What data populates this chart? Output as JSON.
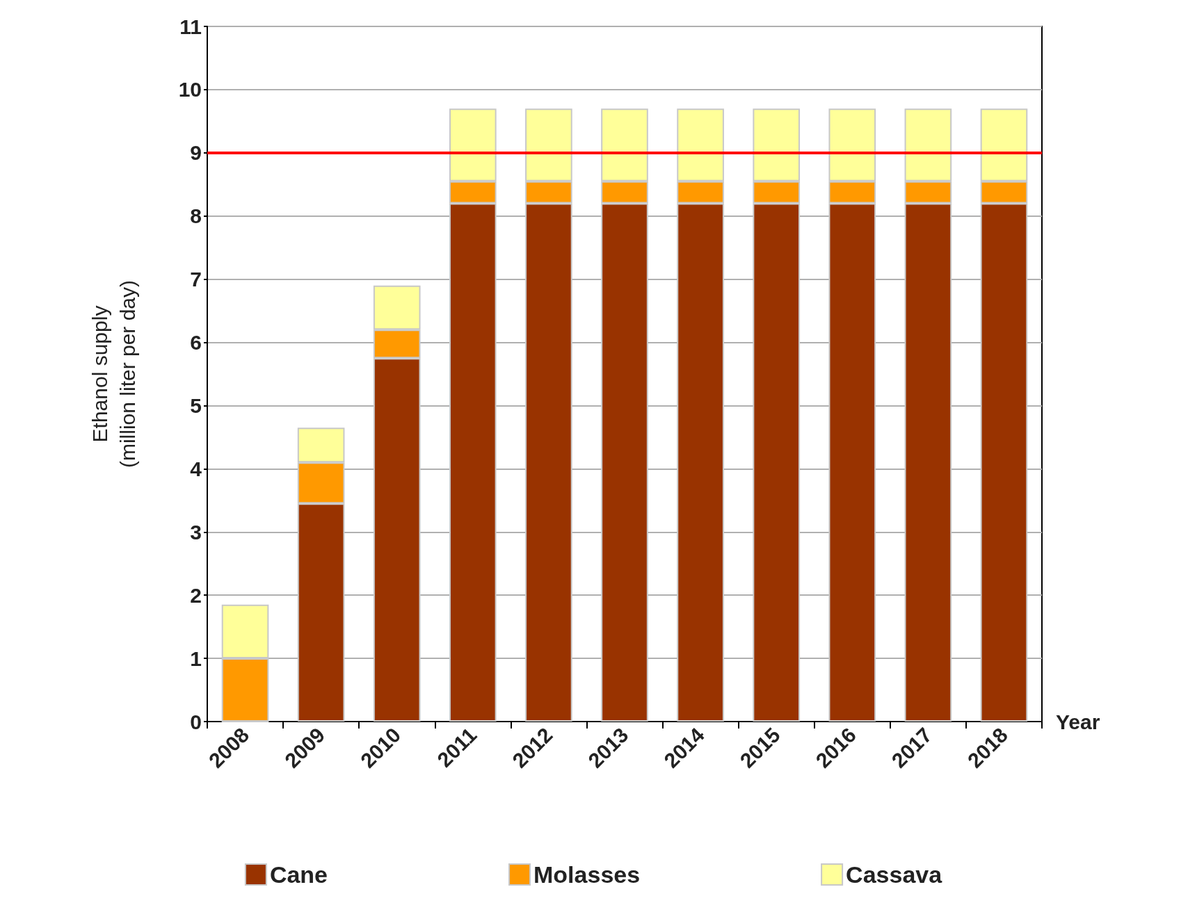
{
  "chart_data": {
    "type": "bar",
    "stacked": true,
    "xlabel": "Year",
    "ylabel": "Ethanol supply\n(million liter per day)",
    "categories": [
      "2008",
      "2009",
      "2010",
      "2011",
      "2012",
      "2013",
      "2014",
      "2015",
      "2016",
      "2017",
      "2018"
    ],
    "series": [
      {
        "name": "Cane",
        "color": "#993300",
        "values": [
          0,
          3.45,
          5.75,
          8.2,
          8.2,
          8.2,
          8.2,
          8.2,
          8.2,
          8.2,
          8.2
        ]
      },
      {
        "name": "Molasses",
        "color": "#ff9900",
        "values": [
          1.0,
          0.65,
          0.45,
          0.35,
          0.35,
          0.35,
          0.35,
          0.35,
          0.35,
          0.35,
          0.35
        ]
      },
      {
        "name": "Cassava",
        "color": "#ffff99",
        "values": [
          0.85,
          0.55,
          0.7,
          1.15,
          1.15,
          1.15,
          1.15,
          1.15,
          1.15,
          1.15,
          1.15
        ]
      }
    ],
    "ylim": [
      0,
      11
    ],
    "yticks": [
      0,
      1,
      2,
      3,
      4,
      5,
      6,
      7,
      8,
      9,
      10,
      11
    ],
    "grid": "y",
    "legend": "bottom",
    "ref_lines": [
      {
        "axis": "y",
        "value": 9,
        "color": "#ff0000"
      }
    ]
  }
}
